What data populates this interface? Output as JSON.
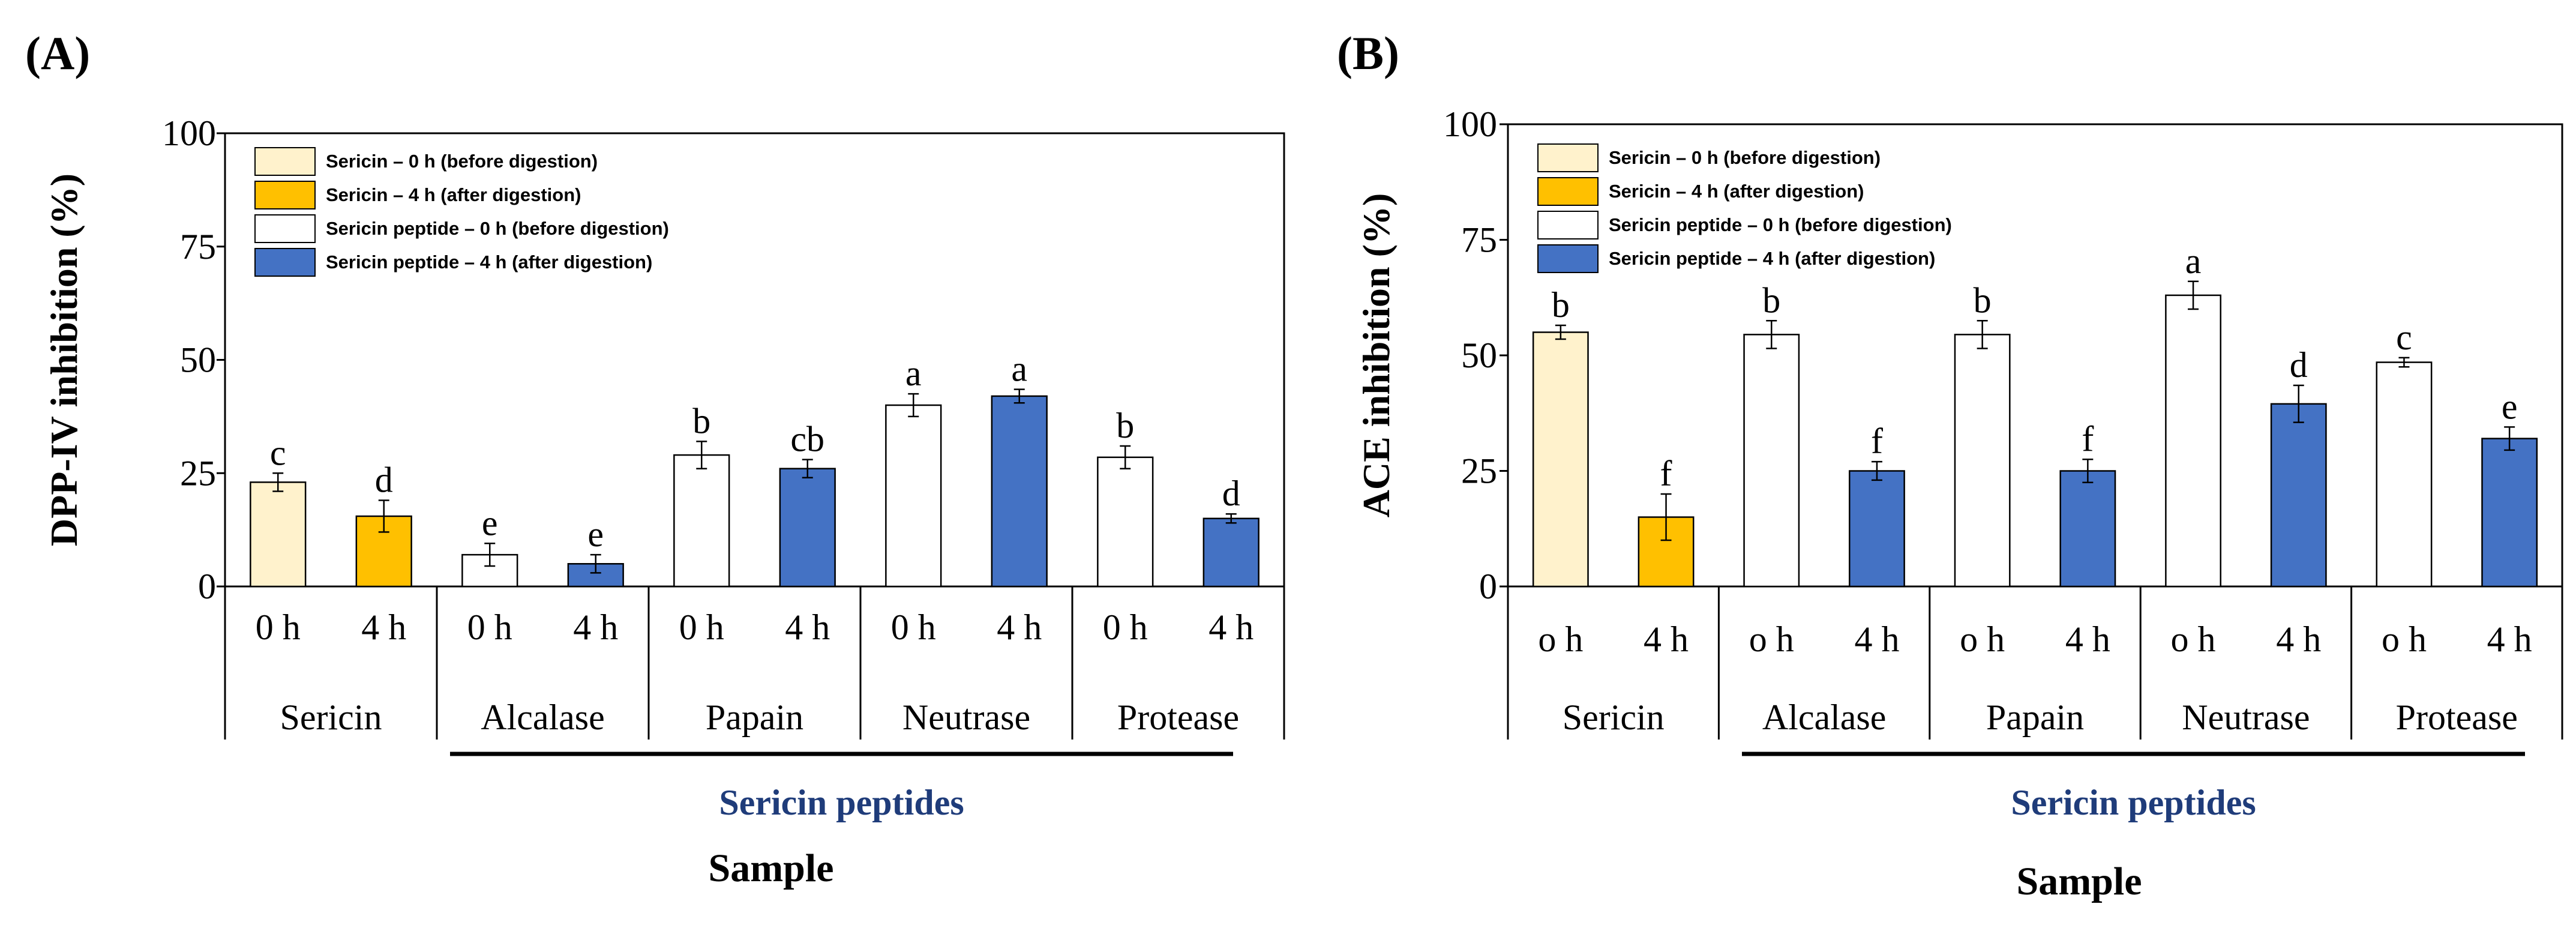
{
  "colors": {
    "sericin_0h": "#fff2cc",
    "sericin_4h": "#ffc000",
    "peptide_0h": "#ffffff",
    "peptide_4h": "#4472c4",
    "peptides_label": "#1f3c7a",
    "border": "#000000"
  },
  "legend": [
    {
      "label": "Sericin – 0 h (before digestion)",
      "color_key": "sericin_0h"
    },
    {
      "label": "Sericin – 4 h (after digestion)",
      "color_key": "sericin_4h"
    },
    {
      "label": "Sericin peptide – 0 h (before digestion)",
      "color_key": "peptide_0h"
    },
    {
      "label": "Sericin peptide – 4 h (after digestion)",
      "color_key": "peptide_4h"
    }
  ],
  "chart_data": [
    {
      "panel": "(A)",
      "type": "bar",
      "title": "",
      "ylabel": "DPP-IV inhibition (%)",
      "xlabel": "Sample",
      "group_caption": "Sericin peptides",
      "ylim": [
        0,
        100
      ],
      "yticks": [
        0,
        25,
        50,
        75,
        100
      ],
      "groups": [
        "Sericin",
        "Alcalase",
        "Papain",
        "Neutrase",
        "Protease"
      ],
      "bars": [
        {
          "group": "Sericin",
          "tick": "0 h",
          "value": 23,
          "error": 2,
          "sig": "c",
          "color_key": "sericin_0h"
        },
        {
          "group": "Sericin",
          "tick": "4 h",
          "value": 15.5,
          "error": 3.5,
          "sig": "d",
          "color_key": "sericin_4h"
        },
        {
          "group": "Alcalase",
          "tick": "0 h",
          "value": 7,
          "error": 2.5,
          "sig": "e",
          "color_key": "peptide_0h"
        },
        {
          "group": "Alcalase",
          "tick": "4 h",
          "value": 5,
          "error": 2,
          "sig": "e",
          "color_key": "peptide_4h"
        },
        {
          "group": "Papain",
          "tick": "0 h",
          "value": 29,
          "error": 3,
          "sig": "b",
          "color_key": "peptide_0h"
        },
        {
          "group": "Papain",
          "tick": "4 h",
          "value": 26,
          "error": 2,
          "sig": "cb",
          "color_key": "peptide_4h"
        },
        {
          "group": "Neutrase",
          "tick": "0 h",
          "value": 40,
          "error": 2.5,
          "sig": "a",
          "color_key": "peptide_0h"
        },
        {
          "group": "Neutrase",
          "tick": "4 h",
          "value": 42,
          "error": 1.5,
          "sig": "a",
          "color_key": "peptide_4h"
        },
        {
          "group": "Protease",
          "tick": "0 h",
          "value": 28.5,
          "error": 2.5,
          "sig": "b",
          "color_key": "peptide_0h"
        },
        {
          "group": "Protease",
          "tick": "4 h",
          "value": 15,
          "error": 1,
          "sig": "d",
          "color_key": "peptide_4h"
        }
      ]
    },
    {
      "panel": "(B)",
      "type": "bar",
      "title": "",
      "ylabel": "ACE inhibition (%)",
      "xlabel": "Sample",
      "group_caption": "Sericin peptides",
      "ylim": [
        0,
        100
      ],
      "yticks": [
        0,
        25,
        50,
        75,
        100
      ],
      "groups": [
        "Sericin",
        "Alcalase",
        "Papain",
        "Neutrase",
        "Protease"
      ],
      "bars": [
        {
          "group": "Sericin",
          "tick": "o h",
          "value": 55,
          "error": 1.5,
          "sig": "b",
          "color_key": "sericin_0h"
        },
        {
          "group": "Sericin",
          "tick": "4 h",
          "value": 15,
          "error": 5,
          "sig": "f",
          "color_key": "sericin_4h"
        },
        {
          "group": "Alcalase",
          "tick": "o h",
          "value": 54.5,
          "error": 3,
          "sig": "b",
          "color_key": "peptide_0h"
        },
        {
          "group": "Alcalase",
          "tick": "4 h",
          "value": 25,
          "error": 2,
          "sig": "f",
          "color_key": "peptide_4h"
        },
        {
          "group": "Papain",
          "tick": "o h",
          "value": 54.5,
          "error": 3,
          "sig": "b",
          "color_key": "peptide_0h"
        },
        {
          "group": "Papain",
          "tick": "4 h",
          "value": 25,
          "error": 2.5,
          "sig": "f",
          "color_key": "peptide_4h"
        },
        {
          "group": "Neutrase",
          "tick": "o h",
          "value": 63,
          "error": 3,
          "sig": "a",
          "color_key": "peptide_0h"
        },
        {
          "group": "Neutrase",
          "tick": "4 h",
          "value": 39.5,
          "error": 4,
          "sig": "d",
          "color_key": "peptide_4h"
        },
        {
          "group": "Protease",
          "tick": "o h",
          "value": 48.5,
          "error": 1,
          "sig": "c",
          "color_key": "peptide_0h"
        },
        {
          "group": "Protease",
          "tick": "4 h",
          "value": 32,
          "error": 2.5,
          "sig": "e",
          "color_key": "peptide_4h"
        }
      ]
    }
  ]
}
